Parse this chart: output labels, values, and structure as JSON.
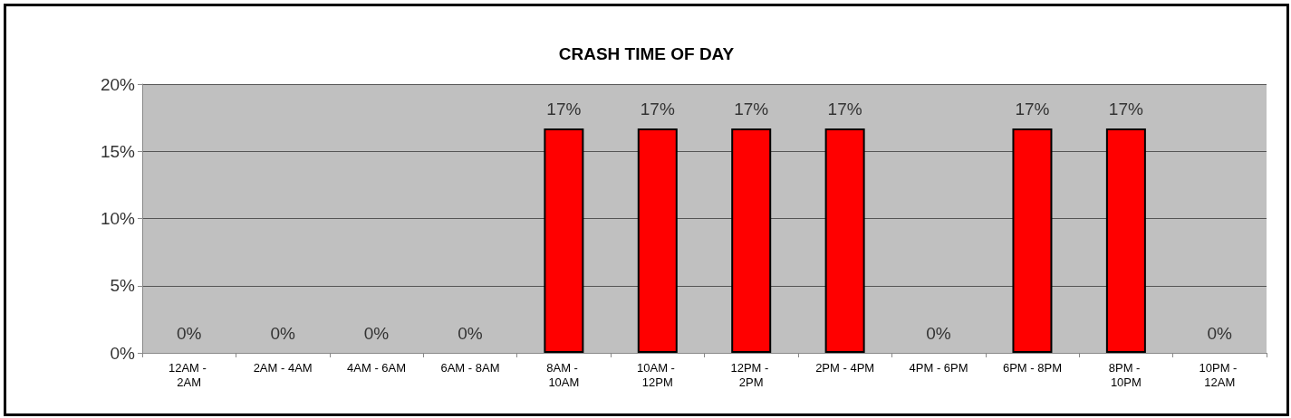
{
  "chart_data": {
    "type": "bar",
    "title": "CRASH TIME OF DAY",
    "categories": [
      "12AM - 2AM",
      "2AM - 4AM",
      "4AM - 6AM",
      "6AM - 8AM",
      "8AM - 10AM",
      "10AM - 12PM",
      "12PM - 2PM",
      "2PM - 4PM",
      "4PM - 6PM",
      "6PM - 8PM",
      "8PM - 10PM",
      "10PM - 12AM"
    ],
    "values": [
      0,
      0,
      0,
      0,
      16.7,
      16.7,
      16.7,
      16.7,
      0,
      16.7,
      16.7,
      0
    ],
    "value_labels": [
      "0%",
      "0%",
      "0%",
      "0%",
      "17%",
      "17%",
      "17%",
      "17%",
      "0%",
      "17%",
      "17%",
      "0%"
    ],
    "color": "#ff0000",
    "ylim": [
      0,
      20
    ],
    "yticks": [
      {
        "value": 0,
        "label": "0%"
      },
      {
        "value": 5,
        "label": "5%"
      },
      {
        "value": 10,
        "label": "10%"
      },
      {
        "value": 15,
        "label": "15%"
      },
      {
        "value": 20,
        "label": "20%"
      }
    ],
    "grid": "y"
  }
}
